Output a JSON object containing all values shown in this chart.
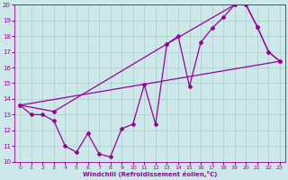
{
  "xlabel": "Windchill (Refroidissement éolien,°C)",
  "bg_color": "#cce8e8",
  "line_color": "#990099",
  "grid_color": "#aacccc",
  "xlim": [
    -0.5,
    23.5
  ],
  "ylim": [
    10,
    20
  ],
  "xticks": [
    0,
    1,
    2,
    3,
    4,
    5,
    6,
    7,
    8,
    9,
    10,
    11,
    12,
    13,
    14,
    15,
    16,
    17,
    18,
    19,
    20,
    21,
    22,
    23
  ],
  "yticks": [
    10,
    11,
    12,
    13,
    14,
    15,
    16,
    17,
    18,
    19,
    20
  ],
  "line1_x": [
    0,
    1,
    2,
    3,
    4,
    5,
    6,
    7,
    8,
    9,
    10,
    11,
    12,
    13,
    14,
    15,
    16,
    17,
    18,
    19,
    20,
    21,
    22,
    23
  ],
  "line1_y": [
    13.6,
    13.0,
    13.0,
    12.6,
    11.0,
    10.6,
    11.8,
    10.5,
    10.3,
    12.1,
    12.4,
    14.9,
    12.4,
    17.5,
    18.0,
    14.8,
    17.6,
    18.5,
    19.2,
    20.0,
    20.0,
    18.6,
    17.0,
    16.4
  ],
  "line2_x": [
    0,
    23
  ],
  "line2_y": [
    13.6,
    16.4
  ],
  "line3a_x": [
    0,
    3,
    13,
    19,
    20,
    21,
    22,
    23
  ],
  "line3a_y": [
    13.6,
    13.2,
    17.5,
    20.0,
    20.0,
    18.6,
    17.0,
    16.4
  ]
}
